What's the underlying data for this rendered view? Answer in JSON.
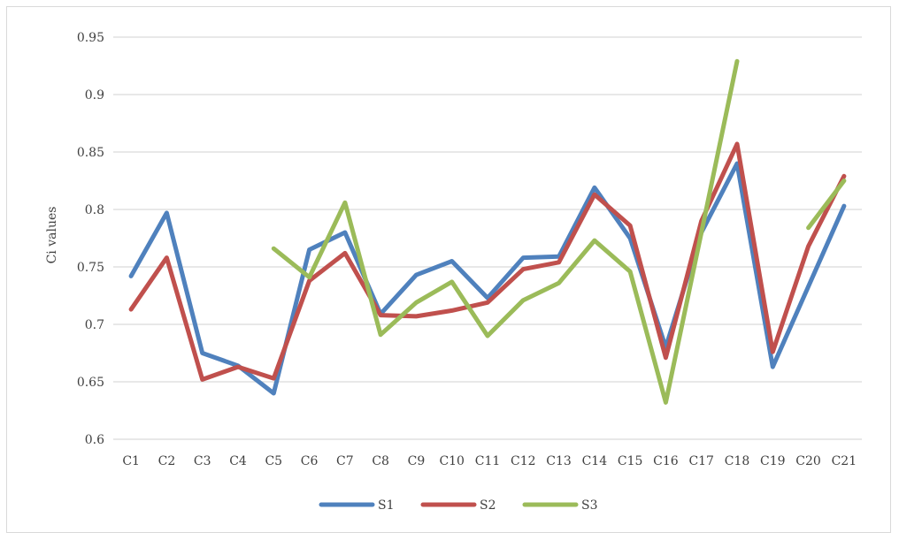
{
  "chart_data": {
    "type": "line",
    "ylabel": "Ci values",
    "xlabel": "",
    "ylim": [
      0.6,
      0.95
    ],
    "yticks": [
      "0.6",
      "0.65",
      "0.7",
      "0.75",
      "0.8",
      "0.85",
      "0.9",
      "0.95"
    ],
    "categories": [
      "C1",
      "C2",
      "C3",
      "C4",
      "C5",
      "C6",
      "C7",
      "C8",
      "C9",
      "C10",
      "C11",
      "C12",
      "C13",
      "C14",
      "C15",
      "C16",
      "C17",
      "C18",
      "C19",
      "C20",
      "C21"
    ],
    "grid": true,
    "legend_position": "bottom",
    "series": [
      {
        "name": "S1",
        "color": "#4f81bd",
        "values": [
          0.742,
          0.797,
          0.675,
          0.664,
          0.64,
          0.765,
          0.78,
          0.709,
          0.743,
          0.755,
          0.723,
          0.758,
          0.759,
          0.819,
          0.775,
          0.68,
          0.78,
          0.84,
          0.663,
          0.733,
          0.803
        ]
      },
      {
        "name": "S2",
        "color": "#c0504d",
        "values": [
          0.713,
          0.758,
          0.652,
          0.663,
          0.653,
          0.738,
          0.762,
          0.708,
          0.707,
          0.712,
          0.719,
          0.748,
          0.754,
          0.813,
          0.786,
          0.671,
          0.79,
          0.857,
          0.676,
          0.768,
          0.829
        ]
      },
      {
        "name": "S3",
        "color": "#9bbb59",
        "values": [
          null,
          null,
          null,
          null,
          0.766,
          0.741,
          0.806,
          0.691,
          0.719,
          0.737,
          0.69,
          0.721,
          0.736,
          0.773,
          0.746,
          0.632,
          0.78,
          0.929,
          null,
          0.784,
          0.825
        ]
      }
    ]
  }
}
